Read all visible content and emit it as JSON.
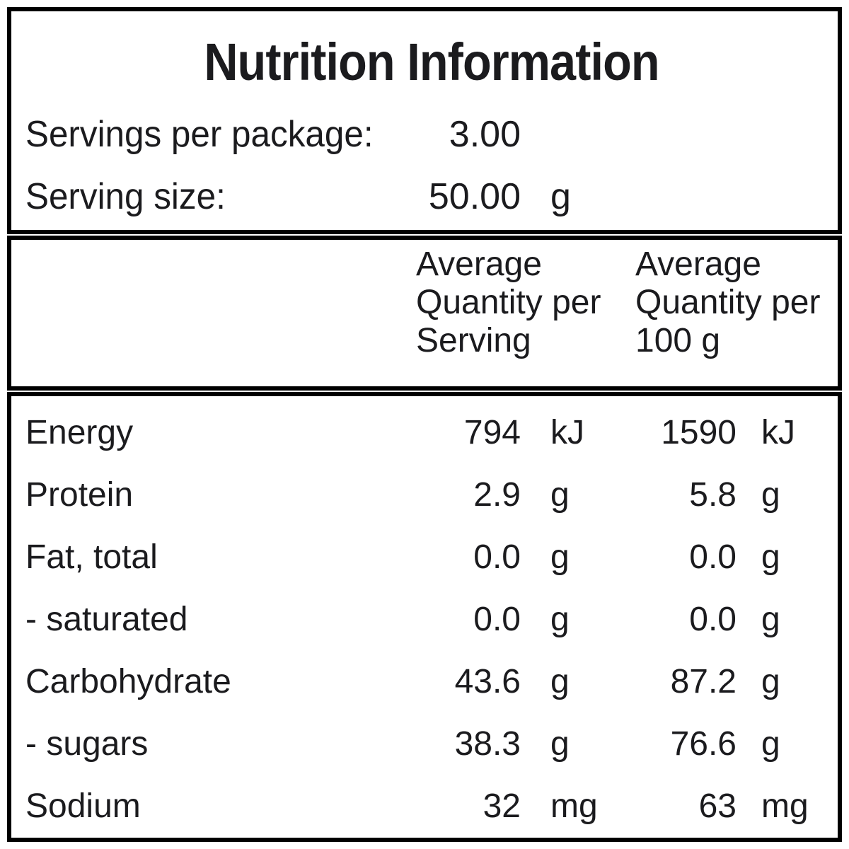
{
  "meta": {
    "background_color": "#ffffff",
    "border_color": "#000000",
    "text_color": "#1b1b1e"
  },
  "label": {
    "title": "Nutrition Information",
    "serving_info": {
      "servings_per_package": {
        "label": "Servings per package:",
        "value": "3.00",
        "unit": ""
      },
      "serving_size": {
        "label": "Serving size:",
        "value": "50.00",
        "unit": "g"
      }
    },
    "column_headers": {
      "per_serving": {
        "line1": "Average",
        "line2": "Quantity per",
        "line3": "Serving"
      },
      "per_100g": {
        "line1": "Average",
        "line2": "Quantity per",
        "line3": "100 g"
      }
    },
    "rows": [
      {
        "name": "Energy",
        "per_serving": "794",
        "per_serving_unit": "kJ",
        "per_100g": "1590",
        "per_100g_unit": "kJ"
      },
      {
        "name": "Protein",
        "per_serving": "2.9",
        "per_serving_unit": "g",
        "per_100g": "5.8",
        "per_100g_unit": "g"
      },
      {
        "name": "Fat, total",
        "per_serving": "0.0",
        "per_serving_unit": "g",
        "per_100g": "0.0",
        "per_100g_unit": "g"
      },
      {
        "name": "- saturated",
        "per_serving": "0.0",
        "per_serving_unit": "g",
        "per_100g": "0.0",
        "per_100g_unit": "g"
      },
      {
        "name": "Carbohydrate",
        "per_serving": "43.6",
        "per_serving_unit": "g",
        "per_100g": "87.2",
        "per_100g_unit": "g"
      },
      {
        "name": "- sugars",
        "per_serving": "38.3",
        "per_serving_unit": "g",
        "per_100g": "76.6",
        "per_100g_unit": "g"
      },
      {
        "name": "Sodium",
        "per_serving": "32",
        "per_serving_unit": "mg",
        "per_100g": "63",
        "per_100g_unit": "mg"
      }
    ]
  }
}
